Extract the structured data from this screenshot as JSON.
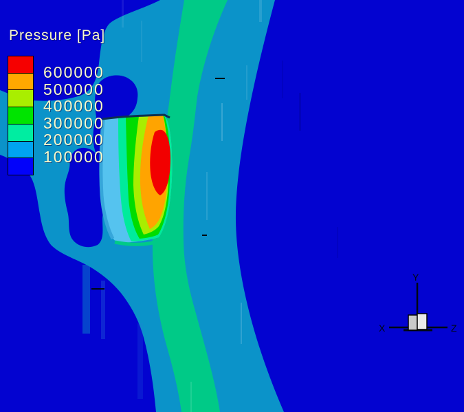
{
  "legend": {
    "title": "Pressure [Pa]",
    "labels": [
      "600000",
      "500000",
      "400000",
      "300000",
      "200000",
      "100000"
    ],
    "band_colors": [
      "#f60000",
      "#ffa800",
      "#a9ee00",
      "#00e400",
      "#00eda1",
      "#00a3f1",
      "#0202fa"
    ]
  },
  "triad": {
    "x": "X",
    "y": "Y",
    "z": "Z"
  },
  "scene": {
    "colors": {
      "background_blue": "#0303d0",
      "chamber_teal": "#0b93c9",
      "band_spring_green": "#00ca87",
      "disc_light_blue": "#55c3ef",
      "disc_edge_blue": "#36a6da",
      "disc_mint": "#00eb9b",
      "disc_green": "#00dc00",
      "disc_chartreuse": "#a9ed00",
      "disc_orange": "#ffa400",
      "disc_red": "#f20000",
      "disc_rim_dark": "#0e3050",
      "axis_black": "#000812",
      "cube_face_left": "#c9c9c9",
      "cube_face_right": "#eaeaea",
      "label_text": "#fafac9"
    }
  },
  "chart_data": {
    "type": "heatmap",
    "title": "Pressure [Pa]",
    "units": "Pa",
    "levels": [
      600000,
      500000,
      400000,
      300000,
      200000,
      100000
    ],
    "n_bands": 7,
    "band_colors_top_to_bottom": [
      "#f60000",
      "#ffa800",
      "#a9ee00",
      "#00e400",
      "#00eda1",
      "#00a3f1",
      "#0202fa"
    ],
    "band_ranges_top_to_bottom": [
      "> 600000",
      "500000-600000",
      "400000-500000",
      "300000-400000",
      "200000-300000",
      "100000-200000",
      "< 100000"
    ],
    "legend_position": "top-left",
    "max_region": "red core on valve disc surface",
    "min_region": "dark blue far field"
  }
}
